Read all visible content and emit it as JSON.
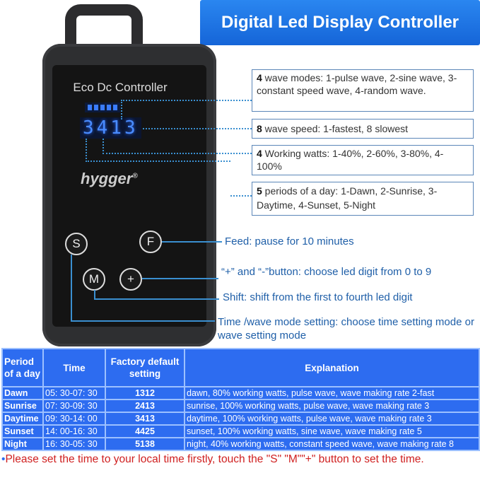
{
  "title": "Digital Led Display Controller",
  "device": {
    "label": "Eco Dc Controller",
    "display": "3413",
    "brand": "hygger",
    "buttons": [
      "S",
      "F",
      "M",
      "+"
    ]
  },
  "callouts": [
    {
      "num": "4",
      "text": " wave modes: 1-pulse wave, 2-sine wave, 3-constant speed wave, 4-random wave."
    },
    {
      "num": "8",
      "text": " wave speed: 1-fastest, 8 slowest"
    },
    {
      "num": "4",
      "text": " Working watts:  1-40%, 2-60%, 3-80%, 4-100%"
    },
    {
      "num": "5",
      "text": " periods of a day: 1-Dawn, 2-Sunrise, 3-Daytime, 4-Sunset, 5-Night"
    }
  ],
  "notes": {
    "feed": "Feed: pause for 10 minutes",
    "plus": "“+” and “-”button: choose led digit from 0 to 9",
    "shift": "Shift: shift from the first to fourth led digit",
    "mode": "Time /wave mode setting: choose time setting mode or wave setting mode"
  },
  "table": {
    "headers": [
      "Period of a day",
      "Time",
      "Factory default setting",
      "Explanation"
    ],
    "rows": [
      [
        "Dawn",
        "05: 30-07: 30",
        "1312",
        "dawn, 80% working watts, pulse wave, wave making rate 2-fast"
      ],
      [
        "Sunrise",
        "07: 30-09: 30",
        "2413",
        "sunrise, 100% working watts, pulse wave, wave making rate 3"
      ],
      [
        "Daytime",
        "09: 30-14: 00",
        "3413",
        "daytime, 100% working watts, pulse wave, wave making rate 3"
      ],
      [
        "Sunset",
        "14: 00-16: 30",
        "4425",
        "sunset, 100% working watts, sine wave, wave making rate 5"
      ],
      [
        "Night",
        "16: 30-05: 30",
        "5138",
        "night, 40% working watts, constant speed wave, wave making rate 8"
      ]
    ]
  },
  "footnote": "Please set the time to your local time firstly, touch the \"S\" \"M\"\"+\" button to set the time.",
  "colors": {
    "banner": "#1f6fe3",
    "table": "#2d6cf0",
    "footnote": "#d02020",
    "notes": "#1f5fa8"
  }
}
